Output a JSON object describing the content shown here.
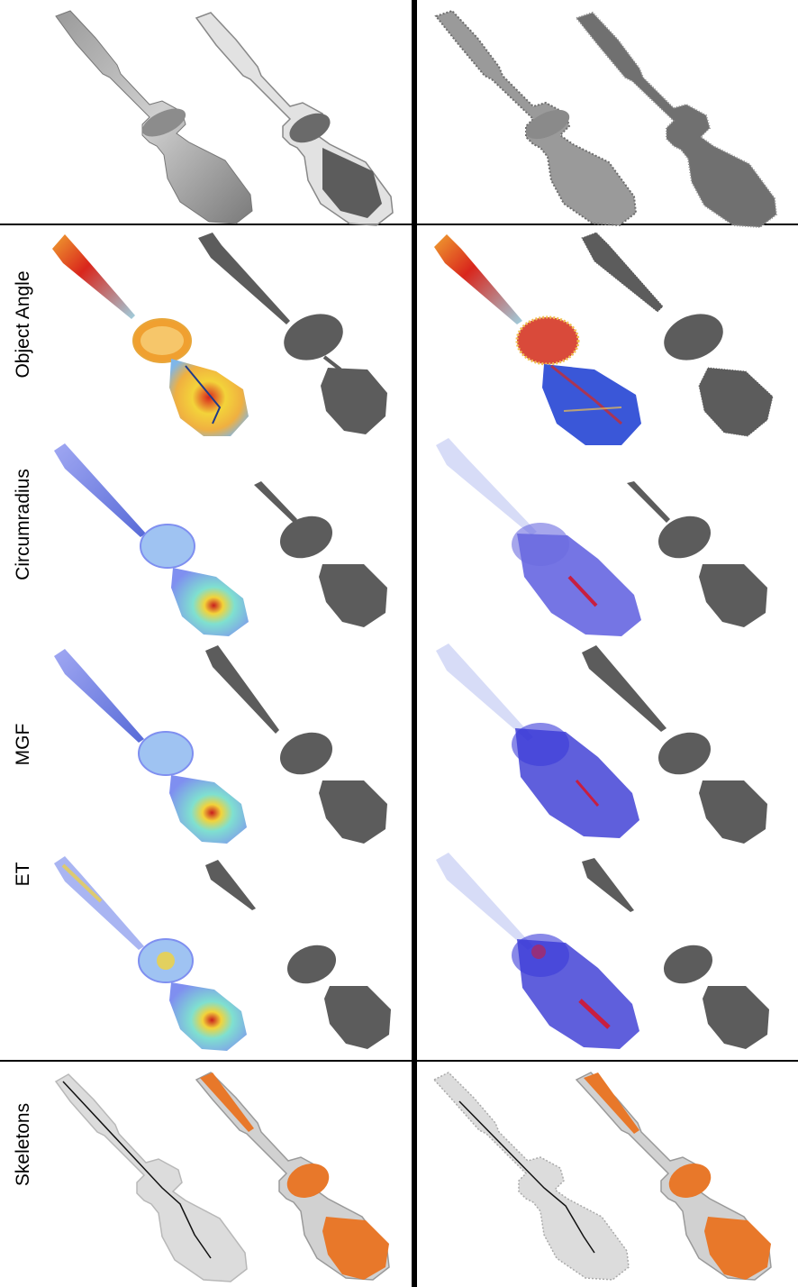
{
  "figure": {
    "row_labels": [
      "Object Angle",
      "Circumradius",
      "MGF",
      "ET",
      "Skeletons"
    ],
    "colors": {
      "gray_solid": "#6e6e6e",
      "gray_dark": "#4a4a4a",
      "gray_light": "#d8d8d8",
      "skeleton_orange": "#e8782a",
      "heat_red": "#d9261c",
      "heat_yellow": "#f3d33a",
      "heat_blue": "#3a57d8",
      "heat_lightblue": "#9fc3f2",
      "divider": "#000000"
    }
  }
}
